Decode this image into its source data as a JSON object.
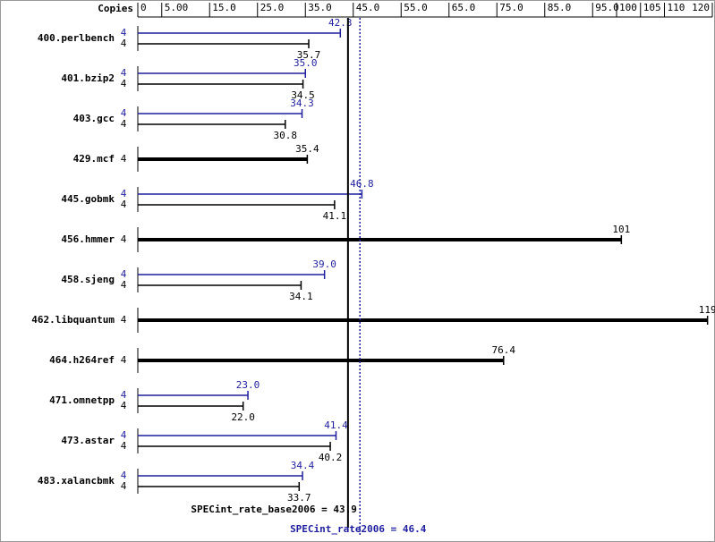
{
  "chart_data": {
    "type": "spec-bar",
    "copies_label": "Copies",
    "categories": [
      "400.perlbench",
      "401.bzip2",
      "403.gcc",
      "429.mcf",
      "445.gobmk",
      "456.hmmer",
      "458.sjeng",
      "462.libquantum",
      "464.h264ref",
      "471.omnetpp",
      "473.astar",
      "483.xalancbmk"
    ],
    "series": [
      {
        "color": "#1f1f9f",
        "copies": [
          4,
          4,
          4,
          null,
          4,
          null,
          4,
          null,
          null,
          4,
          4,
          4
        ],
        "values": [
          42.3,
          35.0,
          34.3,
          null,
          46.8,
          null,
          39.0,
          null,
          null,
          23.0,
          41.4,
          34.4
        ],
        "value_labels": [
          "42.3",
          "35.0",
          "34.3",
          null,
          "46.8",
          null,
          "39.0",
          null,
          null,
          "23.0",
          "41.4",
          "34.4"
        ]
      },
      {
        "color": "#000000",
        "copies": [
          4,
          4,
          4,
          4,
          4,
          4,
          4,
          4,
          4,
          4,
          4,
          4
        ],
        "values": [
          35.7,
          34.5,
          30.8,
          35.4,
          41.1,
          101,
          34.1,
          119,
          76.4,
          22.0,
          40.2,
          33.7
        ],
        "value_labels": [
          "35.7",
          "34.5",
          "30.8",
          "35.4",
          "41.1",
          "101",
          "34.1",
          "119",
          "76.4",
          "22.0",
          "40.2",
          "33.7"
        ]
      }
    ],
    "xlim": [
      0,
      120
    ],
    "xticks": [
      0,
      {
        "value": 5,
        "label": "5.00"
      },
      {
        "value": 15,
        "label": "15.0"
      },
      {
        "value": 25,
        "label": "25.0"
      },
      {
        "value": 35,
        "label": "35.0"
      },
      {
        "value": 45,
        "label": "45.0"
      },
      {
        "value": 55,
        "label": "55.0"
      },
      {
        "value": 65,
        "label": "65.0"
      },
      {
        "value": 75,
        "label": "75.0"
      },
      {
        "value": 85,
        "label": "85.0"
      },
      {
        "value": 95,
        "label": "95.0"
      },
      100,
      105,
      110,
      120
    ],
    "reference_lines": [
      {
        "text": "SPECint_rate_base2006 = 43.9",
        "value": 43.9,
        "color": "#000000"
      },
      {
        "text": "SPECint_rate2006 = 46.4",
        "value": 46.4,
        "color": "#1f1f9f"
      }
    ]
  }
}
